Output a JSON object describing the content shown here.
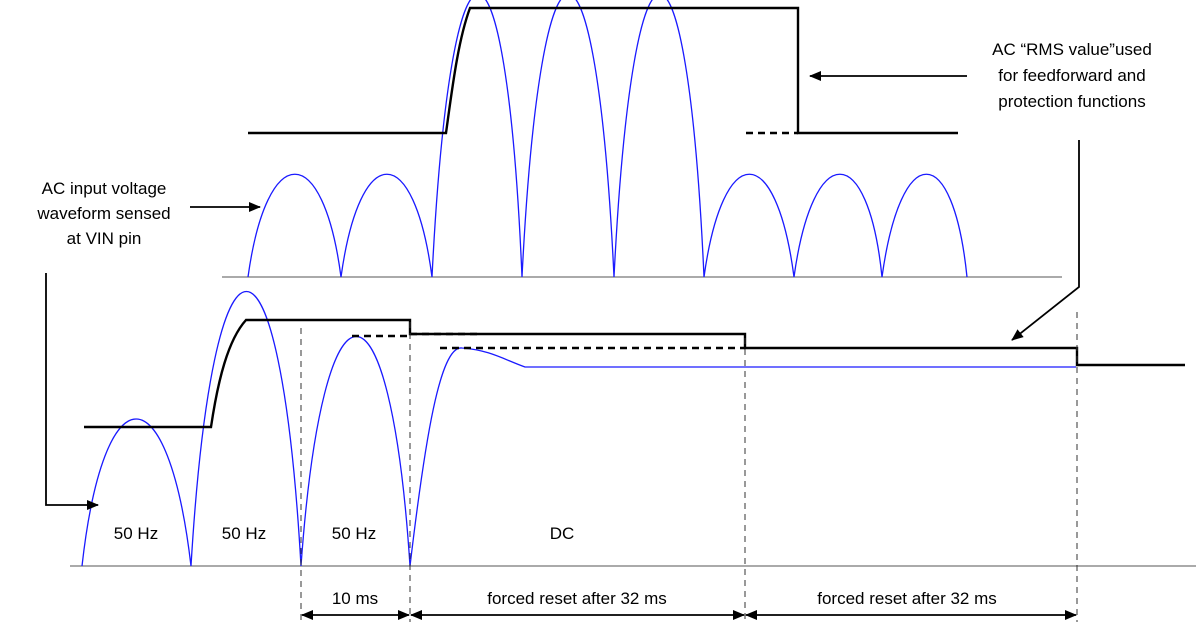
{
  "annotations": {
    "input_label": [
      "AC input voltage",
      "waveform sensed",
      "at VIN pin"
    ],
    "rms_label": [
      "AC “RMS value”used",
      "for feedforward and",
      "protection functions"
    ]
  },
  "segments": [
    {
      "id": "seg1",
      "label": "50 Hz"
    },
    {
      "id": "seg2",
      "label": "50 Hz"
    },
    {
      "id": "seg3",
      "label": "50 Hz"
    },
    {
      "id": "seg4",
      "label": "DC"
    }
  ],
  "intervals": [
    {
      "id": "interval-10ms",
      "label": "10 ms"
    },
    {
      "id": "interval-reset-1",
      "label": "forced reset after 32 ms"
    },
    {
      "id": "interval-reset-2",
      "label": "forced reset after 32 ms"
    }
  ],
  "colors": {
    "waveform": "#1a1aff",
    "envelope": "#000000"
  }
}
